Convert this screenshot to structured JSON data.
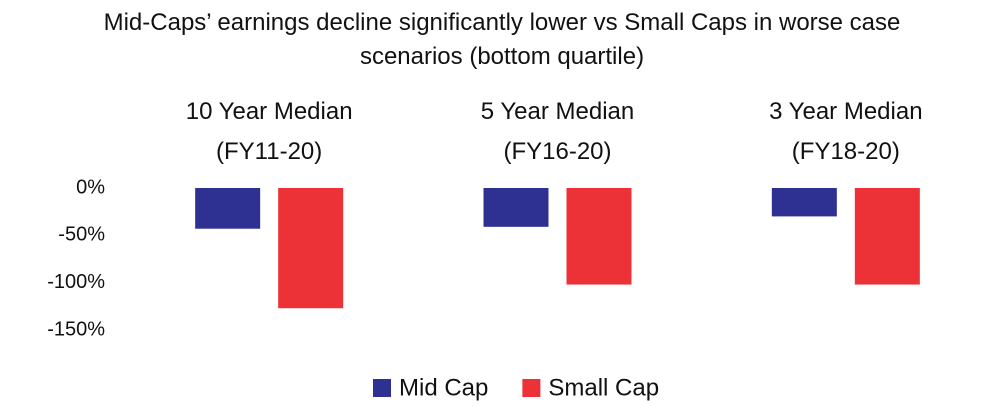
{
  "chart_data": {
    "type": "bar",
    "title": "Mid-Caps’ earnings decline significantly lower vs Small Caps in worse case scenarios (bottom quartile)",
    "categories": [
      "10 Year Median (FY11-20)",
      "5 Year Median (FY16-20)",
      "3 Year Median (FY18-20)"
    ],
    "series": [
      {
        "name": "Mid Cap",
        "color": "#2e3192",
        "values": [
          -43,
          -41,
          -30
        ]
      },
      {
        "name": "Small Cap",
        "color": "#ed3237",
        "values": [
          -127,
          -102,
          -102
        ]
      }
    ],
    "ylim": [
      -150,
      0
    ],
    "yticks": [
      {
        "value": 0,
        "label": "0%"
      },
      {
        "value": -50,
        "label": "-50%"
      },
      {
        "value": -100,
        "label": "-100%"
      },
      {
        "value": -150,
        "label": "-150%"
      }
    ],
    "legend": "bottom"
  }
}
